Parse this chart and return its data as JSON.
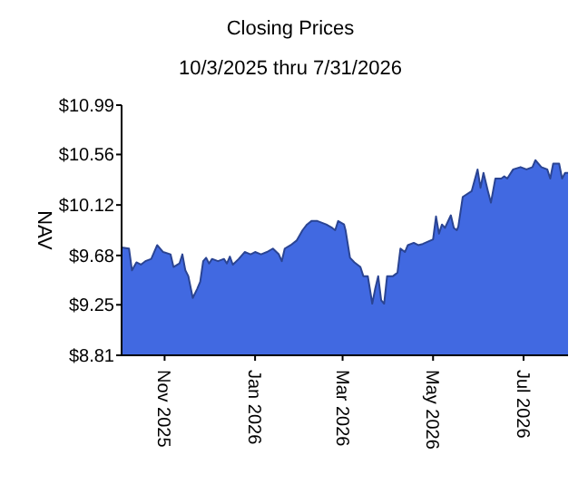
{
  "chart_data": {
    "type": "area",
    "title": "Closing Prices",
    "subtitle": "10/3/2025 thru 7/31/2026",
    "ylabel": "NAV",
    "xlim": [
      "2025-10-03",
      "2026-07-31"
    ],
    "xticks": [
      {
        "value": "2025-11-01",
        "label": "Nov 2025"
      },
      {
        "value": "2026-01-01",
        "label": "Jan 2026"
      },
      {
        "value": "2026-03-01",
        "label": "Mar 2026"
      },
      {
        "value": "2026-05-01",
        "label": "May 2026"
      },
      {
        "value": "2026-07-01",
        "label": "Jul 2026"
      }
    ],
    "ylim": [
      8.81,
      10.99
    ],
    "yticks": [
      {
        "value": 8.81,
        "label": "$8.81"
      },
      {
        "value": 9.25,
        "label": "$9.25"
      },
      {
        "value": 9.68,
        "label": "$9.68"
      },
      {
        "value": 10.12,
        "label": "$10.12"
      },
      {
        "value": 10.56,
        "label": "$10.56"
      },
      {
        "value": 10.99,
        "label": "$10.99"
      }
    ],
    "grid": false,
    "legend": false,
    "x": [
      "2025-10-03",
      "2025-10-08",
      "2025-10-10",
      "2025-10-13",
      "2025-10-16",
      "2025-10-19",
      "2025-10-23",
      "2025-10-27",
      "2025-10-31",
      "2025-11-05",
      "2025-11-07",
      "2025-11-11",
      "2025-11-13",
      "2025-11-15",
      "2025-11-17",
      "2025-11-20",
      "2025-11-23",
      "2025-11-25",
      "2025-11-27",
      "2025-11-29",
      "2025-12-01",
      "2025-12-03",
      "2025-12-07",
      "2025-12-11",
      "2025-12-13",
      "2025-12-15",
      "2025-12-17",
      "2025-12-21",
      "2025-12-25",
      "2025-12-29",
      "2026-01-01",
      "2026-01-05",
      "2026-01-09",
      "2026-01-13",
      "2026-01-17",
      "2026-01-19",
      "2026-01-21",
      "2026-01-25",
      "2026-01-29",
      "2026-02-02",
      "2026-02-05",
      "2026-02-08",
      "2026-02-12",
      "2026-02-18",
      "2026-02-22",
      "2026-02-24",
      "2026-02-26",
      "2026-03-02",
      "2026-03-03",
      "2026-03-06",
      "2026-03-09",
      "2026-03-13",
      "2026-03-15",
      "2026-03-18",
      "2026-03-21",
      "2026-03-23",
      "2026-03-25",
      "2026-03-27",
      "2026-03-29",
      "2026-03-31",
      "2026-04-04",
      "2026-04-07",
      "2026-04-09",
      "2026-04-12",
      "2026-04-14",
      "2026-04-18",
      "2026-04-21",
      "2026-04-24",
      "2026-05-01",
      "2026-05-03",
      "2026-05-05",
      "2026-05-07",
      "2026-05-09",
      "2026-05-13",
      "2026-05-15",
      "2026-05-17",
      "2026-05-18",
      "2026-05-21",
      "2026-05-27",
      "2026-05-31",
      "2026-06-02",
      "2026-06-04",
      "2026-06-07",
      "2026-06-09",
      "2026-06-12",
      "2026-06-16",
      "2026-06-18",
      "2026-06-20",
      "2026-06-24",
      "2026-06-29",
      "2026-07-03",
      "2026-07-07",
      "2026-07-09",
      "2026-07-13",
      "2026-07-17",
      "2026-07-19",
      "2026-07-21",
      "2026-07-25",
      "2026-07-27",
      "2026-07-29",
      "2026-07-31"
    ],
    "series": [
      {
        "color": "#4169e1",
        "values": [
          9.75,
          9.74,
          9.55,
          9.62,
          9.6,
          9.63,
          9.65,
          9.77,
          9.71,
          9.69,
          9.58,
          9.61,
          9.69,
          9.55,
          9.5,
          9.31,
          9.39,
          9.45,
          9.63,
          9.66,
          9.61,
          9.65,
          9.63,
          9.65,
          9.61,
          9.67,
          9.6,
          9.65,
          9.71,
          9.69,
          9.71,
          9.69,
          9.71,
          9.74,
          9.69,
          9.63,
          9.74,
          9.77,
          9.81,
          9.9,
          9.95,
          9.98,
          9.98,
          9.95,
          9.92,
          9.9,
          9.98,
          9.95,
          9.9,
          9.66,
          9.62,
          9.58,
          9.5,
          9.5,
          9.26,
          9.39,
          9.5,
          9.29,
          9.26,
          9.5,
          9.5,
          9.53,
          9.74,
          9.71,
          9.77,
          9.79,
          9.77,
          9.78,
          9.82,
          10.02,
          9.87,
          9.95,
          9.92,
          10.03,
          9.92,
          9.9,
          9.93,
          10.19,
          10.24,
          10.43,
          10.27,
          10.4,
          10.24,
          10.14,
          10.35,
          10.35,
          10.37,
          10.35,
          10.43,
          10.45,
          10.43,
          10.45,
          10.51,
          10.45,
          10.43,
          10.35,
          10.48,
          10.48,
          10.35,
          10.4,
          10.4
        ]
      }
    ]
  }
}
